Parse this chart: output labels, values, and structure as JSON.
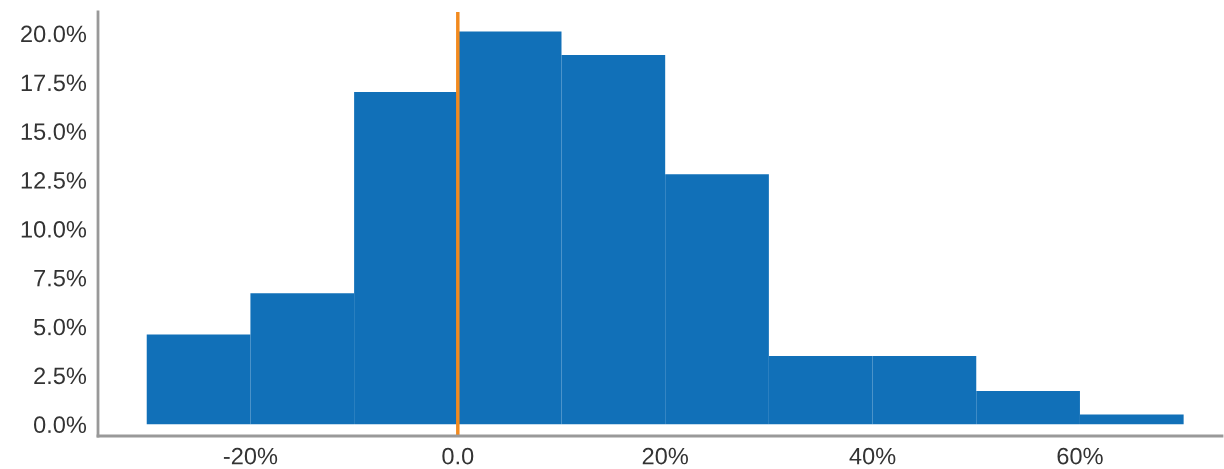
{
  "chart_data": {
    "type": "histogram",
    "bins": [
      -30,
      -20,
      -10,
      0,
      10,
      20,
      30,
      40,
      50,
      60,
      70
    ],
    "values": [
      4.6,
      6.7,
      17.0,
      20.1,
      18.9,
      12.8,
      3.5,
      3.5,
      1.7,
      0.5
    ],
    "color": "#1170b8",
    "xlim": [
      -34.7,
      73.7
    ],
    "ylim": [
      -0.6,
      21.1
    ],
    "xticks": [
      {
        "value": -20,
        "label": "-20%"
      },
      {
        "value": 0,
        "label": "0.0"
      },
      {
        "value": 20,
        "label": "20%"
      },
      {
        "value": 40,
        "label": "40%"
      },
      {
        "value": 60,
        "label": "60%"
      }
    ],
    "yticks": [
      {
        "value": 0,
        "label": "0.0%"
      },
      {
        "value": 2.5,
        "label": "2.5%"
      },
      {
        "value": 5,
        "label": "5.0%"
      },
      {
        "value": 7.5,
        "label": "7.5%"
      },
      {
        "value": 10,
        "label": "10.0%"
      },
      {
        "value": 12.5,
        "label": "12.5%"
      },
      {
        "value": 15,
        "label": "15.0%"
      },
      {
        "value": 17.5,
        "label": "17.5%"
      },
      {
        "value": 20,
        "label": "20.0%"
      }
    ],
    "ref_lines": [
      {
        "axis": "x",
        "value": 0,
        "label": null,
        "color": "#f28a1e"
      }
    ],
    "grid": false,
    "legend": false
  }
}
